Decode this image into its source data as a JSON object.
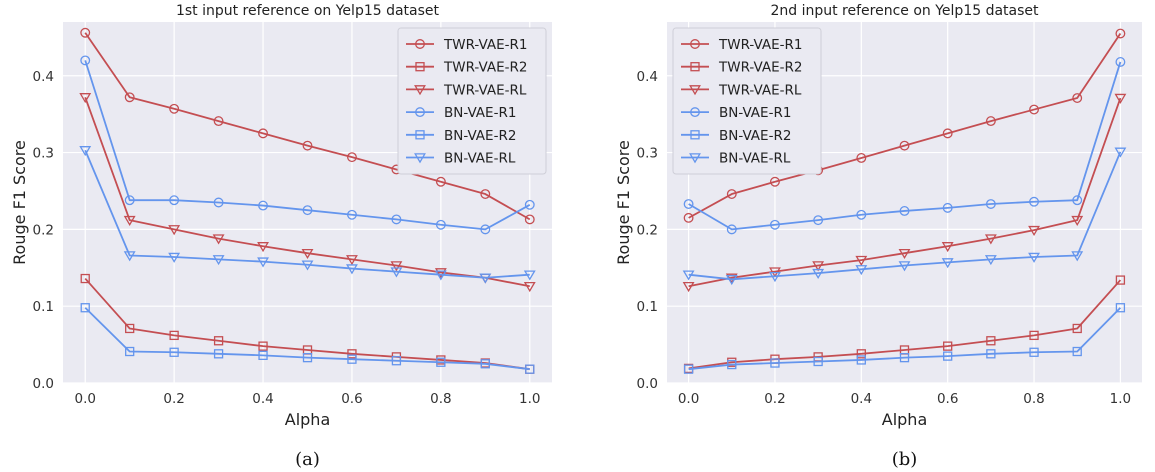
{
  "colors": {
    "twr": "#c44e52",
    "bn": "#6495ed"
  },
  "chart_data": [
    {
      "type": "line",
      "title": "1st input reference on Yelp15 dataset",
      "xlabel": "Alpha",
      "ylabel": "Rouge F1 Score",
      "caption": "(a)",
      "xlim": [
        -0.05,
        1.05
      ],
      "ylim": [
        0,
        0.47
      ],
      "xticks": [
        "0.0",
        "0.2",
        "0.4",
        "0.6",
        "0.8",
        "1.0"
      ],
      "yticks": [
        "0.0",
        "0.1",
        "0.2",
        "0.3",
        "0.4"
      ],
      "grid": true,
      "legend": "top-right",
      "x": [
        0.0,
        0.1,
        0.2,
        0.3,
        0.4,
        0.5,
        0.6,
        0.7,
        0.8,
        0.9,
        1.0
      ],
      "series": [
        {
          "name": "TWR-VAE-R1",
          "marker": "circle",
          "color_key": "twr",
          "values": [
            0.456,
            0.372,
            0.357,
            0.341,
            0.325,
            0.309,
            0.294,
            0.278,
            0.262,
            0.246,
            0.213
          ]
        },
        {
          "name": "TWR-VAE-R2",
          "marker": "square",
          "color_key": "twr",
          "values": [
            0.136,
            0.071,
            0.062,
            0.055,
            0.048,
            0.043,
            0.038,
            0.034,
            0.03,
            0.026,
            0.018
          ]
        },
        {
          "name": "TWR-VAE-RL",
          "marker": "triangle-down",
          "color_key": "twr",
          "values": [
            0.372,
            0.212,
            0.2,
            0.188,
            0.178,
            0.169,
            0.161,
            0.153,
            0.144,
            0.137,
            0.126
          ]
        },
        {
          "name": "BN-VAE-R1",
          "marker": "circle",
          "color_key": "bn",
          "values": [
            0.42,
            0.238,
            0.238,
            0.235,
            0.231,
            0.225,
            0.219,
            0.213,
            0.206,
            0.2,
            0.232
          ]
        },
        {
          "name": "BN-VAE-R2",
          "marker": "square",
          "color_key": "bn",
          "values": [
            0.098,
            0.041,
            0.04,
            0.038,
            0.036,
            0.033,
            0.031,
            0.029,
            0.027,
            0.025,
            0.018
          ]
        },
        {
          "name": "BN-VAE-RL",
          "marker": "triangle-down",
          "color_key": "bn",
          "values": [
            0.303,
            0.166,
            0.164,
            0.161,
            0.158,
            0.154,
            0.149,
            0.145,
            0.141,
            0.137,
            0.141
          ]
        }
      ]
    },
    {
      "type": "line",
      "title": "2nd input reference on Yelp15 dataset",
      "xlabel": "Alpha",
      "ylabel": "Rouge F1 Score",
      "caption": "(b)",
      "xlim": [
        -0.05,
        1.05
      ],
      "ylim": [
        0,
        0.47
      ],
      "xticks": [
        "0.0",
        "0.2",
        "0.4",
        "0.6",
        "0.8",
        "1.0"
      ],
      "yticks": [
        "0.0",
        "0.1",
        "0.2",
        "0.3",
        "0.4"
      ],
      "grid": true,
      "legend": "top-left",
      "x": [
        0.0,
        0.1,
        0.2,
        0.3,
        0.4,
        0.5,
        0.6,
        0.7,
        0.8,
        0.9,
        1.0
      ],
      "series": [
        {
          "name": "TWR-VAE-R1",
          "marker": "circle",
          "color_key": "twr",
          "values": [
            0.215,
            0.246,
            0.262,
            0.277,
            0.293,
            0.309,
            0.325,
            0.341,
            0.356,
            0.371,
            0.455
          ]
        },
        {
          "name": "TWR-VAE-R2",
          "marker": "square",
          "color_key": "twr",
          "values": [
            0.019,
            0.027,
            0.031,
            0.034,
            0.038,
            0.043,
            0.048,
            0.055,
            0.062,
            0.071,
            0.134
          ]
        },
        {
          "name": "TWR-VAE-RL",
          "marker": "triangle-down",
          "color_key": "twr",
          "values": [
            0.126,
            0.137,
            0.145,
            0.153,
            0.16,
            0.169,
            0.178,
            0.188,
            0.199,
            0.212,
            0.371
          ]
        },
        {
          "name": "BN-VAE-R1",
          "marker": "circle",
          "color_key": "bn",
          "values": [
            0.233,
            0.2,
            0.206,
            0.212,
            0.219,
            0.224,
            0.228,
            0.233,
            0.236,
            0.238,
            0.418
          ]
        },
        {
          "name": "BN-VAE-R2",
          "marker": "square",
          "color_key": "bn",
          "values": [
            0.018,
            0.024,
            0.026,
            0.028,
            0.03,
            0.033,
            0.035,
            0.038,
            0.04,
            0.041,
            0.098
          ]
        },
        {
          "name": "BN-VAE-RL",
          "marker": "triangle-down",
          "color_key": "bn",
          "values": [
            0.141,
            0.135,
            0.139,
            0.143,
            0.148,
            0.153,
            0.157,
            0.161,
            0.164,
            0.166,
            0.301
          ]
        }
      ]
    }
  ]
}
